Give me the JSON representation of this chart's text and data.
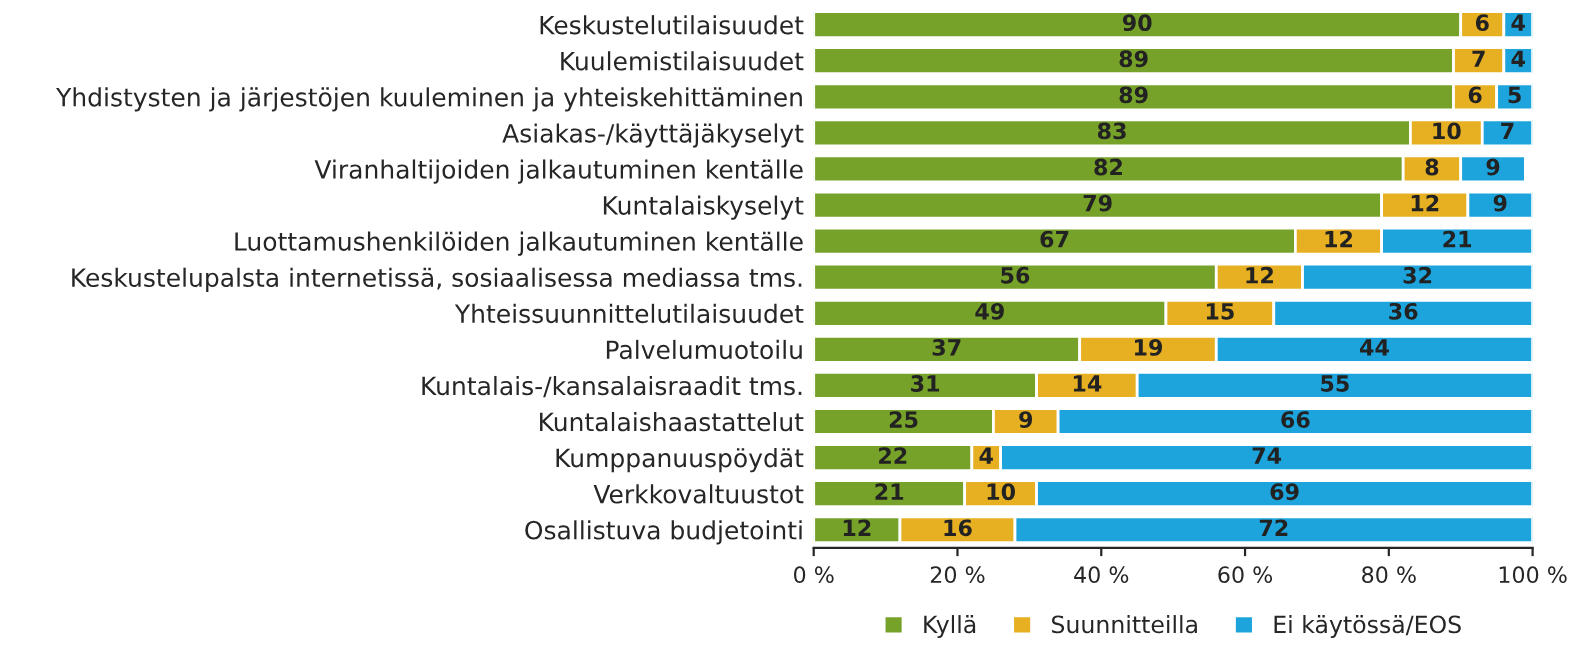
{
  "chart_data": {
    "type": "bar",
    "orientation": "horizontal",
    "stacked": true,
    "data_labels": true,
    "legend": "bottom",
    "grid": false,
    "categories": [
      "Keskustelutilaisuudet",
      "Kuulemistilaisuudet",
      "Yhdistysten ja järjestöjen kuuleminen ja yhteiskehittäminen",
      "Asiakas-/käyttäjäkyselyt",
      "Viranhaltijoiden jalkautuminen kentälle",
      "Kuntalaiskyselyt",
      "Luottamushenkilöiden jalkautuminen kentälle",
      "Keskustelupalsta internetissä, sosiaalisessa mediassa tms.",
      "Yhteissuunnittelutilaisuudet",
      "Palvelumuotoilu",
      "Kuntalais-/kansalaisraadit tms.",
      "Kuntalaishaastattelut",
      "Kumppanuuspöydät",
      "Verkkovaltuustot",
      "Osallistuva budjetointi"
    ],
    "series": [
      {
        "name": "Kyllä",
        "color": "#76a22a",
        "values": [
          90,
          89,
          89,
          83,
          82,
          79,
          67,
          56,
          49,
          37,
          31,
          25,
          22,
          21,
          12
        ]
      },
      {
        "name": "Suunnitteilla",
        "color": "#e6b022",
        "values": [
          6,
          7,
          6,
          10,
          8,
          12,
          12,
          12,
          15,
          19,
          14,
          9,
          4,
          10,
          16
        ]
      },
      {
        "name": "Ei käytössä/EOS",
        "color": "#1ea4dc",
        "values": [
          4,
          4,
          5,
          7,
          9,
          9,
          21,
          32,
          36,
          44,
          55,
          66,
          74,
          69,
          72
        ]
      }
    ],
    "xlim": [
      0,
      100
    ],
    "xticks": [
      {
        "value": 0,
        "label": "0 %"
      },
      {
        "value": 20,
        "label": "20 %"
      },
      {
        "value": 40,
        "label": "40 %"
      },
      {
        "value": 60,
        "label": "60 %"
      },
      {
        "value": 80,
        "label": "80 %"
      },
      {
        "value": 100,
        "label": "100 %"
      }
    ]
  }
}
